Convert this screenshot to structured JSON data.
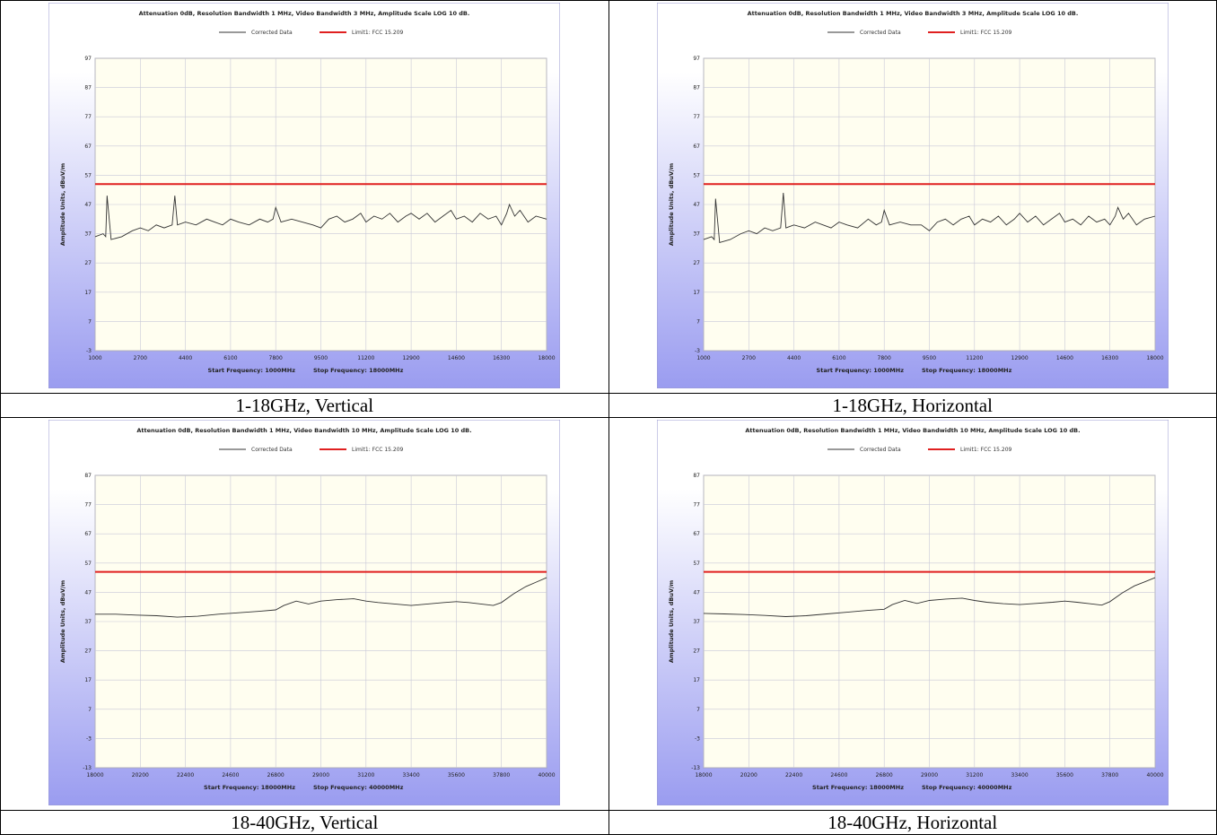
{
  "captions": [
    "1-18GHz, Vertical",
    "1-18GHz, Horizontal",
    "18-40GHz, Vertical",
    "18-40GHz, Horizontal"
  ],
  "colors": {
    "corrected": "#333333",
    "limit": "#e02020",
    "grid": "#c8c8d8",
    "bg_top": "#ffffff",
    "bg_bottom": "#9a9cf0",
    "plot_bg": "#fffef0"
  },
  "chart_data": [
    {
      "type": "line",
      "title": "Attenuation 0dB, Resolution Bandwidth 1 MHz, Video Bandwidth 3 MHz, Amplitude Scale LOG 10 dB.",
      "legend": [
        "Corrected Data",
        "Limit1: FCC 15.209"
      ],
      "ylabel": "Amplitude Units, dBuV/m",
      "yticks": [
        "97",
        "87",
        "77",
        "67",
        "57",
        "47",
        "37",
        "27",
        "17",
        "7",
        "-3"
      ],
      "ylim": [
        -3,
        97
      ],
      "xticks": [
        "1000",
        "2700",
        "4400",
        "6100",
        "7800",
        "9500",
        "11200",
        "12900",
        "14600",
        "16300",
        "18000"
      ],
      "xlim": [
        1000,
        18000
      ],
      "start_label": "Start Frequency: 1000MHz",
      "stop_label": "Stop Frequency: 18000MHz",
      "limit": 54,
      "series": [
        {
          "name": "Corrected Data",
          "x": [
            1000,
            1300,
            1400,
            1450,
            1600,
            2000,
            2400,
            2700,
            3000,
            3300,
            3600,
            3900,
            4000,
            4100,
            4400,
            4800,
            5200,
            5500,
            5800,
            6100,
            6400,
            6800,
            7200,
            7500,
            7700,
            7800,
            8000,
            8400,
            8800,
            9200,
            9500,
            9800,
            10100,
            10400,
            10700,
            11000,
            11200,
            11500,
            11800,
            12100,
            12400,
            12700,
            12900,
            13200,
            13500,
            13800,
            14100,
            14400,
            14600,
            14900,
            15200,
            15500,
            15800,
            16100,
            16300,
            16500,
            16600,
            16800,
            17000,
            17300,
            17600,
            18000
          ],
          "y": [
            36,
            37,
            36,
            50,
            35,
            36,
            38,
            39,
            38,
            40,
            39,
            40,
            50,
            40,
            41,
            40,
            42,
            41,
            40,
            42,
            41,
            40,
            42,
            41,
            42,
            46,
            41,
            42,
            41,
            40,
            39,
            42,
            43,
            41,
            42,
            44,
            41,
            43,
            42,
            44,
            41,
            43,
            44,
            42,
            44,
            41,
            43,
            45,
            42,
            43,
            41,
            44,
            42,
            43,
            40,
            44,
            47,
            43,
            45,
            41,
            43,
            42
          ]
        },
        {
          "name": "Limit1: FCC 15.209",
          "x": [
            1000,
            18000
          ],
          "y": [
            54,
            54
          ]
        }
      ]
    },
    {
      "type": "line",
      "title": "Attenuation 0dB, Resolution Bandwidth 1 MHz, Video Bandwidth 3 MHz, Amplitude Scale LOG 10 dB.",
      "legend": [
        "Corrected Data",
        "Limit1: FCC 15.209"
      ],
      "ylabel": "Amplitude Units, dBuV/m",
      "yticks": [
        "97",
        "87",
        "77",
        "67",
        "57",
        "47",
        "37",
        "27",
        "17",
        "7",
        "-3"
      ],
      "ylim": [
        -3,
        97
      ],
      "xticks": [
        "1000",
        "2700",
        "4400",
        "6100",
        "7800",
        "9500",
        "11200",
        "12900",
        "14600",
        "16300",
        "18000"
      ],
      "xlim": [
        1000,
        18000
      ],
      "start_label": "Start Frequency: 1000MHz",
      "stop_label": "Stop Frequency: 18000MHz",
      "limit": 54,
      "series": [
        {
          "name": "Corrected Data",
          "x": [
            1000,
            1300,
            1400,
            1450,
            1600,
            2000,
            2400,
            2700,
            3000,
            3300,
            3600,
            3900,
            4000,
            4100,
            4400,
            4800,
            5200,
            5500,
            5800,
            6100,
            6400,
            6800,
            7200,
            7500,
            7700,
            7800,
            8000,
            8400,
            8800,
            9200,
            9500,
            9800,
            10100,
            10400,
            10700,
            11000,
            11200,
            11500,
            11800,
            12100,
            12400,
            12700,
            12900,
            13200,
            13500,
            13800,
            14100,
            14400,
            14600,
            14900,
            15200,
            15500,
            15800,
            16100,
            16300,
            16500,
            16600,
            16800,
            17000,
            17300,
            17600,
            18000
          ],
          "y": [
            35,
            36,
            35,
            49,
            34,
            35,
            37,
            38,
            37,
            39,
            38,
            39,
            51,
            39,
            40,
            39,
            41,
            40,
            39,
            41,
            40,
            39,
            42,
            40,
            41,
            45,
            40,
            41,
            40,
            40,
            38,
            41,
            42,
            40,
            42,
            43,
            40,
            42,
            41,
            43,
            40,
            42,
            44,
            41,
            43,
            40,
            42,
            44,
            41,
            42,
            40,
            43,
            41,
            42,
            40,
            43,
            46,
            42,
            44,
            40,
            42,
            43
          ]
        },
        {
          "name": "Limit1: FCC 15.209",
          "x": [
            1000,
            18000
          ],
          "y": [
            54,
            54
          ]
        }
      ]
    },
    {
      "type": "line",
      "title": "Attenuation 0dB, Resolution Bandwidth 1 MHz, Video Bandwidth 10 MHz, Amplitude Scale LOG 10 dB.",
      "legend": [
        "Corrected Data",
        "Limit1: FCC 15.209"
      ],
      "ylabel": "Amplitude Units, dBuV/m",
      "yticks": [
        "87",
        "77",
        "67",
        "57",
        "47",
        "37",
        "27",
        "17",
        "7",
        "-3",
        "-13"
      ],
      "ylim": [
        -13,
        87
      ],
      "xticks": [
        "18000",
        "20200",
        "22400",
        "24600",
        "26800",
        "29000",
        "31200",
        "33400",
        "35600",
        "37800",
        "40000"
      ],
      "xlim": [
        18000,
        40000
      ],
      "start_label": "Start Frequency: 18000MHz",
      "stop_label": "Stop Frequency: 40000MHz",
      "limit": 54,
      "series": [
        {
          "name": "Corrected Data",
          "x": [
            18000,
            19000,
            20000,
            21000,
            22000,
            23000,
            24000,
            25000,
            26000,
            26800,
            27200,
            27800,
            28400,
            29000,
            29800,
            30600,
            31200,
            31800,
            32600,
            33400,
            34200,
            35000,
            35600,
            36200,
            36800,
            37400,
            37800,
            38400,
            39000,
            39500,
            40000
          ],
          "y": [
            39.5,
            39.5,
            39.2,
            39.0,
            38.5,
            38.8,
            39.5,
            40.0,
            40.5,
            41.0,
            42.5,
            44.0,
            43.0,
            44.0,
            44.5,
            44.8,
            44.0,
            43.5,
            43.0,
            42.5,
            43.0,
            43.5,
            43.8,
            43.5,
            43.0,
            42.5,
            43.5,
            46.5,
            49.0,
            50.5,
            52.0
          ]
        },
        {
          "name": "Limit1: FCC 15.209",
          "x": [
            18000,
            40000
          ],
          "y": [
            54,
            54
          ]
        }
      ]
    },
    {
      "type": "line",
      "title": "Attenuation 0dB, Resolution Bandwidth 1 MHz, Video Bandwidth 10 MHz, Amplitude Scale LOG 10 dB.",
      "legend": [
        "Corrected Data",
        "Limit1: FCC 15.209"
      ],
      "ylabel": "Amplitude Units, dBuV/m",
      "yticks": [
        "87",
        "77",
        "67",
        "57",
        "47",
        "37",
        "27",
        "17",
        "7",
        "-3",
        "-13"
      ],
      "ylim": [
        -13,
        87
      ],
      "xticks": [
        "18000",
        "20200",
        "22400",
        "24600",
        "26800",
        "29000",
        "31200",
        "33400",
        "35600",
        "37800",
        "40000"
      ],
      "xlim": [
        18000,
        40000
      ],
      "start_label": "Start Frequency: 18000MHz",
      "stop_label": "Stop Frequency: 40000MHz",
      "limit": 54,
      "series": [
        {
          "name": "Corrected Data",
          "x": [
            18000,
            19000,
            20000,
            21000,
            22000,
            23000,
            24000,
            25000,
            26000,
            26800,
            27200,
            27800,
            28400,
            29000,
            29800,
            30600,
            31200,
            31800,
            32600,
            33400,
            34200,
            35000,
            35600,
            36200,
            36800,
            37400,
            37800,
            38400,
            39000,
            39500,
            40000
          ],
          "y": [
            39.8,
            39.6,
            39.4,
            39.1,
            38.7,
            39.0,
            39.6,
            40.2,
            40.8,
            41.2,
            42.8,
            44.2,
            43.2,
            44.2,
            44.7,
            45.0,
            44.2,
            43.6,
            43.1,
            42.8,
            43.2,
            43.6,
            44.0,
            43.6,
            43.1,
            42.6,
            43.8,
            46.8,
            49.2,
            50.6,
            52.0
          ]
        },
        {
          "name": "Limit1: FCC 15.209",
          "x": [
            18000,
            40000
          ],
          "y": [
            54,
            54
          ]
        }
      ]
    }
  ]
}
